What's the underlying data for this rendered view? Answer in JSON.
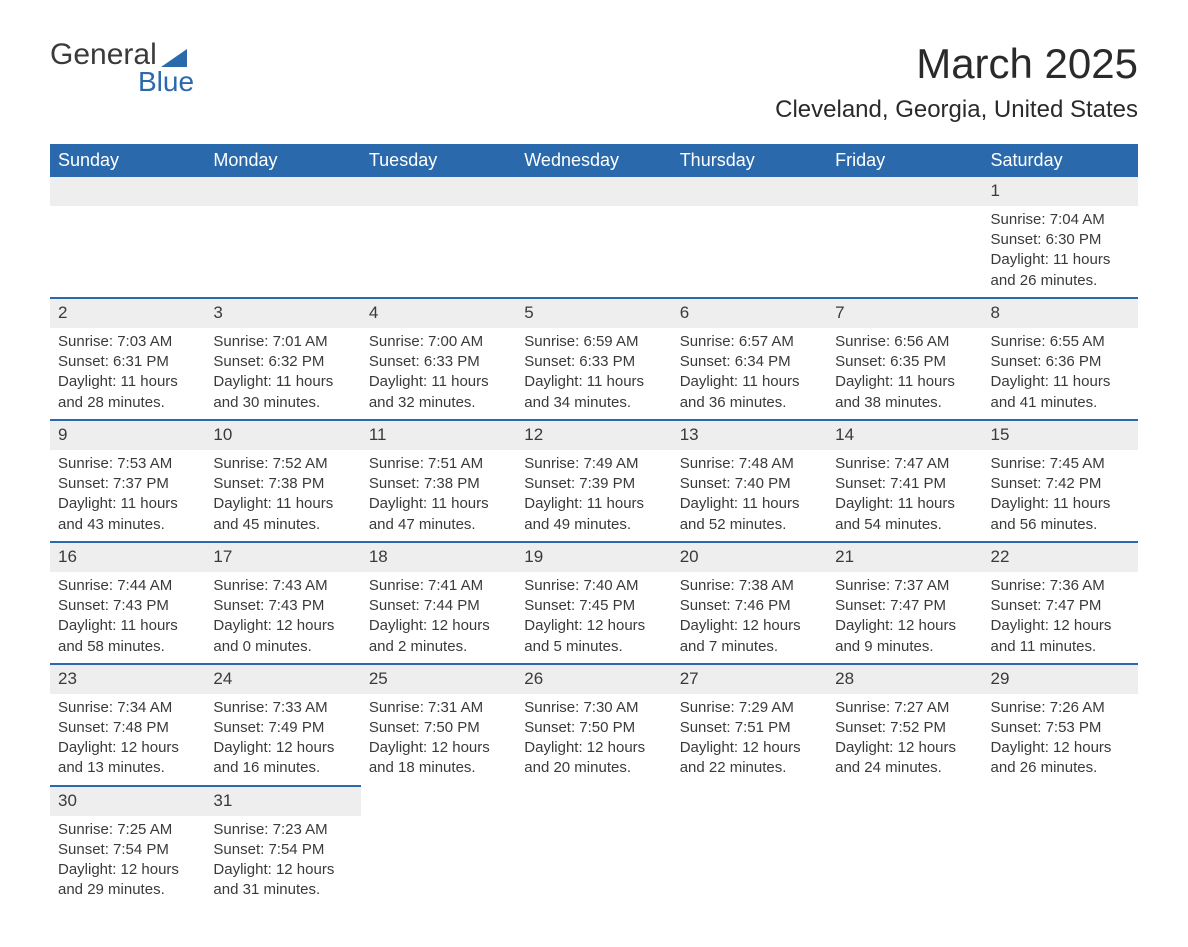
{
  "logo": {
    "line1": "General",
    "line2": "Blue"
  },
  "title": "March 2025",
  "location": "Cleveland, Georgia, United States",
  "weekday_headers": [
    "Sunday",
    "Monday",
    "Tuesday",
    "Wednesday",
    "Thursday",
    "Friday",
    "Saturday"
  ],
  "colors": {
    "header_bg": "#2a6aac",
    "header_text": "#ffffff",
    "daynum_bg": "#eeeeee",
    "row_border": "#2a6aac",
    "body_text": "#3a3a3a",
    "title_text": "#2a2a2a",
    "page_bg": "#ffffff"
  },
  "fonts": {
    "title_size_pt": 32,
    "location_size_pt": 18,
    "header_size_pt": 14,
    "cell_size_pt": 11
  },
  "weeks": [
    [
      null,
      null,
      null,
      null,
      null,
      null,
      {
        "n": "1",
        "sunrise": "Sunrise: 7:04 AM",
        "sunset": "Sunset: 6:30 PM",
        "day1": "Daylight: 11 hours",
        "day2": "and 26 minutes."
      }
    ],
    [
      {
        "n": "2",
        "sunrise": "Sunrise: 7:03 AM",
        "sunset": "Sunset: 6:31 PM",
        "day1": "Daylight: 11 hours",
        "day2": "and 28 minutes."
      },
      {
        "n": "3",
        "sunrise": "Sunrise: 7:01 AM",
        "sunset": "Sunset: 6:32 PM",
        "day1": "Daylight: 11 hours",
        "day2": "and 30 minutes."
      },
      {
        "n": "4",
        "sunrise": "Sunrise: 7:00 AM",
        "sunset": "Sunset: 6:33 PM",
        "day1": "Daylight: 11 hours",
        "day2": "and 32 minutes."
      },
      {
        "n": "5",
        "sunrise": "Sunrise: 6:59 AM",
        "sunset": "Sunset: 6:33 PM",
        "day1": "Daylight: 11 hours",
        "day2": "and 34 minutes."
      },
      {
        "n": "6",
        "sunrise": "Sunrise: 6:57 AM",
        "sunset": "Sunset: 6:34 PM",
        "day1": "Daylight: 11 hours",
        "day2": "and 36 minutes."
      },
      {
        "n": "7",
        "sunrise": "Sunrise: 6:56 AM",
        "sunset": "Sunset: 6:35 PM",
        "day1": "Daylight: 11 hours",
        "day2": "and 38 minutes."
      },
      {
        "n": "8",
        "sunrise": "Sunrise: 6:55 AM",
        "sunset": "Sunset: 6:36 PM",
        "day1": "Daylight: 11 hours",
        "day2": "and 41 minutes."
      }
    ],
    [
      {
        "n": "9",
        "sunrise": "Sunrise: 7:53 AM",
        "sunset": "Sunset: 7:37 PM",
        "day1": "Daylight: 11 hours",
        "day2": "and 43 minutes."
      },
      {
        "n": "10",
        "sunrise": "Sunrise: 7:52 AM",
        "sunset": "Sunset: 7:38 PM",
        "day1": "Daylight: 11 hours",
        "day2": "and 45 minutes."
      },
      {
        "n": "11",
        "sunrise": "Sunrise: 7:51 AM",
        "sunset": "Sunset: 7:38 PM",
        "day1": "Daylight: 11 hours",
        "day2": "and 47 minutes."
      },
      {
        "n": "12",
        "sunrise": "Sunrise: 7:49 AM",
        "sunset": "Sunset: 7:39 PM",
        "day1": "Daylight: 11 hours",
        "day2": "and 49 minutes."
      },
      {
        "n": "13",
        "sunrise": "Sunrise: 7:48 AM",
        "sunset": "Sunset: 7:40 PM",
        "day1": "Daylight: 11 hours",
        "day2": "and 52 minutes."
      },
      {
        "n": "14",
        "sunrise": "Sunrise: 7:47 AM",
        "sunset": "Sunset: 7:41 PM",
        "day1": "Daylight: 11 hours",
        "day2": "and 54 minutes."
      },
      {
        "n": "15",
        "sunrise": "Sunrise: 7:45 AM",
        "sunset": "Sunset: 7:42 PM",
        "day1": "Daylight: 11 hours",
        "day2": "and 56 minutes."
      }
    ],
    [
      {
        "n": "16",
        "sunrise": "Sunrise: 7:44 AM",
        "sunset": "Sunset: 7:43 PM",
        "day1": "Daylight: 11 hours",
        "day2": "and 58 minutes."
      },
      {
        "n": "17",
        "sunrise": "Sunrise: 7:43 AM",
        "sunset": "Sunset: 7:43 PM",
        "day1": "Daylight: 12 hours",
        "day2": "and 0 minutes."
      },
      {
        "n": "18",
        "sunrise": "Sunrise: 7:41 AM",
        "sunset": "Sunset: 7:44 PM",
        "day1": "Daylight: 12 hours",
        "day2": "and 2 minutes."
      },
      {
        "n": "19",
        "sunrise": "Sunrise: 7:40 AM",
        "sunset": "Sunset: 7:45 PM",
        "day1": "Daylight: 12 hours",
        "day2": "and 5 minutes."
      },
      {
        "n": "20",
        "sunrise": "Sunrise: 7:38 AM",
        "sunset": "Sunset: 7:46 PM",
        "day1": "Daylight: 12 hours",
        "day2": "and 7 minutes."
      },
      {
        "n": "21",
        "sunrise": "Sunrise: 7:37 AM",
        "sunset": "Sunset: 7:47 PM",
        "day1": "Daylight: 12 hours",
        "day2": "and 9 minutes."
      },
      {
        "n": "22",
        "sunrise": "Sunrise: 7:36 AM",
        "sunset": "Sunset: 7:47 PM",
        "day1": "Daylight: 12 hours",
        "day2": "and 11 minutes."
      }
    ],
    [
      {
        "n": "23",
        "sunrise": "Sunrise: 7:34 AM",
        "sunset": "Sunset: 7:48 PM",
        "day1": "Daylight: 12 hours",
        "day2": "and 13 minutes."
      },
      {
        "n": "24",
        "sunrise": "Sunrise: 7:33 AM",
        "sunset": "Sunset: 7:49 PM",
        "day1": "Daylight: 12 hours",
        "day2": "and 16 minutes."
      },
      {
        "n": "25",
        "sunrise": "Sunrise: 7:31 AM",
        "sunset": "Sunset: 7:50 PM",
        "day1": "Daylight: 12 hours",
        "day2": "and 18 minutes."
      },
      {
        "n": "26",
        "sunrise": "Sunrise: 7:30 AM",
        "sunset": "Sunset: 7:50 PM",
        "day1": "Daylight: 12 hours",
        "day2": "and 20 minutes."
      },
      {
        "n": "27",
        "sunrise": "Sunrise: 7:29 AM",
        "sunset": "Sunset: 7:51 PM",
        "day1": "Daylight: 12 hours",
        "day2": "and 22 minutes."
      },
      {
        "n": "28",
        "sunrise": "Sunrise: 7:27 AM",
        "sunset": "Sunset: 7:52 PM",
        "day1": "Daylight: 12 hours",
        "day2": "and 24 minutes."
      },
      {
        "n": "29",
        "sunrise": "Sunrise: 7:26 AM",
        "sunset": "Sunset: 7:53 PM",
        "day1": "Daylight: 12 hours",
        "day2": "and 26 minutes."
      }
    ],
    [
      {
        "n": "30",
        "sunrise": "Sunrise: 7:25 AM",
        "sunset": "Sunset: 7:54 PM",
        "day1": "Daylight: 12 hours",
        "day2": "and 29 minutes."
      },
      {
        "n": "31",
        "sunrise": "Sunrise: 7:23 AM",
        "sunset": "Sunset: 7:54 PM",
        "day1": "Daylight: 12 hours",
        "day2": "and 31 minutes."
      },
      null,
      null,
      null,
      null,
      null
    ]
  ]
}
